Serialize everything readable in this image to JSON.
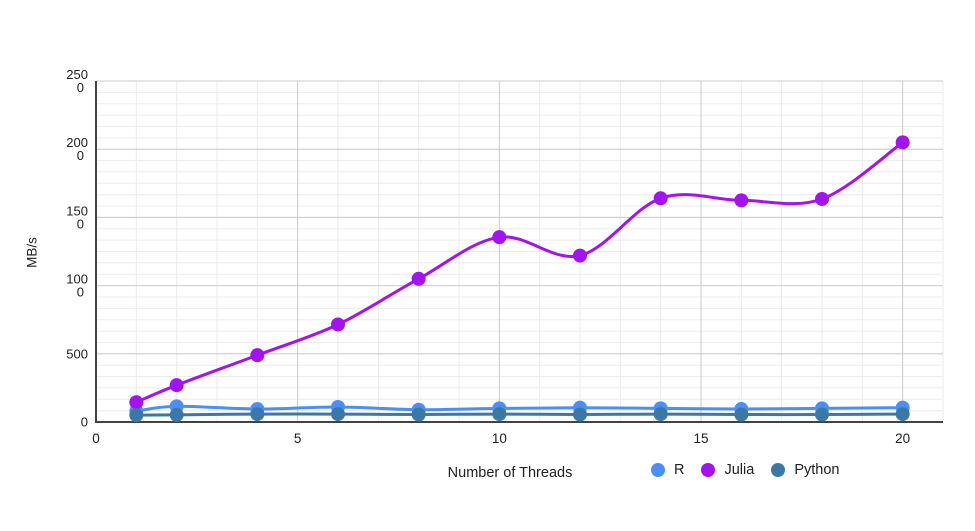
{
  "chart_data": {
    "type": "line",
    "title": "",
    "xlabel": "Number of Threads",
    "ylabel": "MB/s",
    "x": [
      1,
      2,
      4,
      6,
      8,
      10,
      12,
      14,
      16,
      18,
      20
    ],
    "series": [
      {
        "name": "R",
        "color": "#4A8FF5",
        "values": [
          80,
          115,
          95,
          110,
          90,
          100,
          105,
          100,
          95,
          100,
          105
        ]
      },
      {
        "name": "Julia",
        "color": "#A312F0",
        "values": [
          145,
          270,
          490,
          715,
          1050,
          1355,
          1220,
          1640,
          1625,
          1635,
          2050
        ]
      },
      {
        "name": "Python",
        "color": "#3B78A6",
        "values": [
          50,
          52,
          58,
          58,
          55,
          58,
          55,
          58,
          55,
          55,
          58
        ]
      }
    ],
    "xlim": [
      0,
      21
    ],
    "ylim": [
      0,
      2500
    ],
    "xticks": [
      0,
      5,
      10,
      15,
      20
    ],
    "yticks": [
      0,
      500,
      1000,
      1500,
      2000,
      2500
    ],
    "x_minor_step": 1,
    "y_minor_divisions": 6,
    "grid": true,
    "legend_position": "bottom-right",
    "smooth": true
  },
  "style": {
    "major_grid_color": "#cbcbcb",
    "minor_grid_color": "#ebebeb",
    "axis_line_color": "#424242",
    "tick_text_color": "#202124",
    "line_width": 3,
    "point_radius": 7
  }
}
